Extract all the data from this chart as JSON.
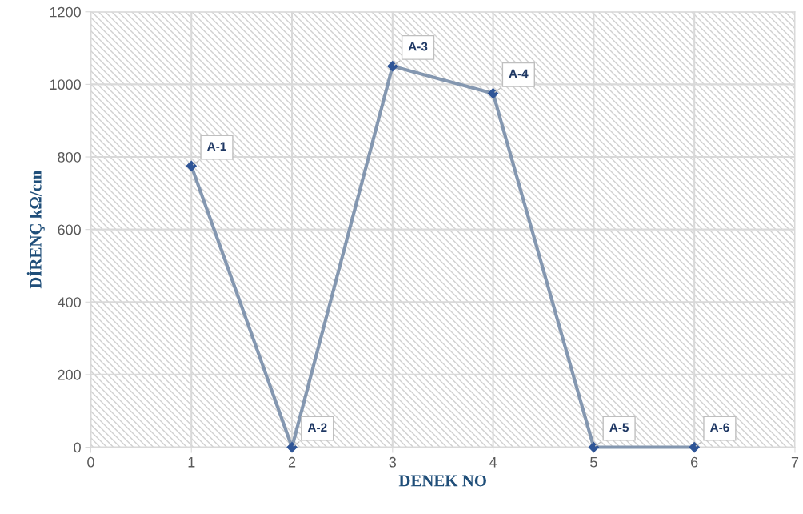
{
  "chart_data": {
    "type": "line",
    "xlabel": "DENEK NO",
    "ylabel": "DİRENÇ kΩ/cm",
    "x": [
      1,
      2,
      3,
      4,
      5,
      6
    ],
    "series": [
      {
        "color": "#8497b0",
        "values": [
          775,
          0,
          1050,
          975,
          0,
          0
        ]
      }
    ],
    "marker": "diamond",
    "line_style": "solid",
    "xlim": [
      0,
      7
    ],
    "xticks": [
      0,
      1,
      2,
      3,
      4,
      5,
      6,
      7
    ],
    "ylim": [
      0,
      1200
    ],
    "yticks": [
      0,
      200,
      400,
      600,
      800,
      1000,
      1200
    ],
    "grid": true,
    "legend": false,
    "annotations": [
      {
        "text": "A-1",
        "x": 1,
        "y": 775
      },
      {
        "text": "A-2",
        "x": 2,
        "y": 0
      },
      {
        "text": "A-3",
        "x": 3,
        "y": 1050
      },
      {
        "text": "A-4",
        "x": 4,
        "y": 975
      },
      {
        "text": "A-5",
        "x": 5,
        "y": 0
      },
      {
        "text": "A-6",
        "x": 6,
        "y": 0
      }
    ]
  }
}
